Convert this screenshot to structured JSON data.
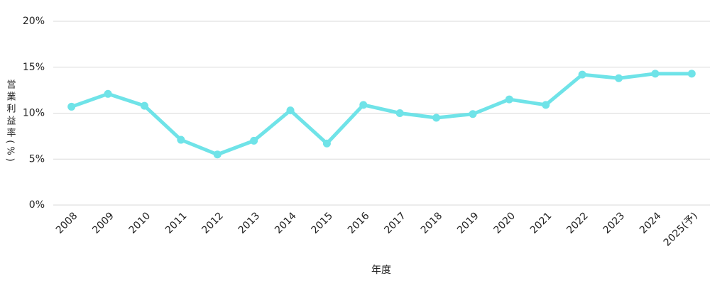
{
  "chart_data": {
    "type": "line",
    "y_label": "営業利益率(%)",
    "x_label": "年度",
    "categories": [
      "2008",
      "2009",
      "2010",
      "2011",
      "2012",
      "2013",
      "2014",
      "2015",
      "2016",
      "2017",
      "2018",
      "2019",
      "2020",
      "2021",
      "2022",
      "2023",
      "2024",
      "2025(予)"
    ],
    "series": [
      {
        "color": "#6fe3e8",
        "values": [
          10.7,
          12.1,
          10.8,
          7.1,
          5.5,
          7.0,
          10.3,
          6.7,
          10.9,
          10.0,
          9.5,
          9.9,
          11.5,
          10.9,
          14.2,
          13.8,
          14.3,
          14.3
        ]
      }
    ],
    "ylim": [
      0,
      20
    ],
    "yticks": [
      {
        "value": 0,
        "label": "0%"
      },
      {
        "value": 5,
        "label": "5%"
      },
      {
        "value": 10,
        "label": "10%"
      },
      {
        "value": 15,
        "label": "15%"
      },
      {
        "value": 20,
        "label": "20%"
      }
    ],
    "grid": true
  }
}
